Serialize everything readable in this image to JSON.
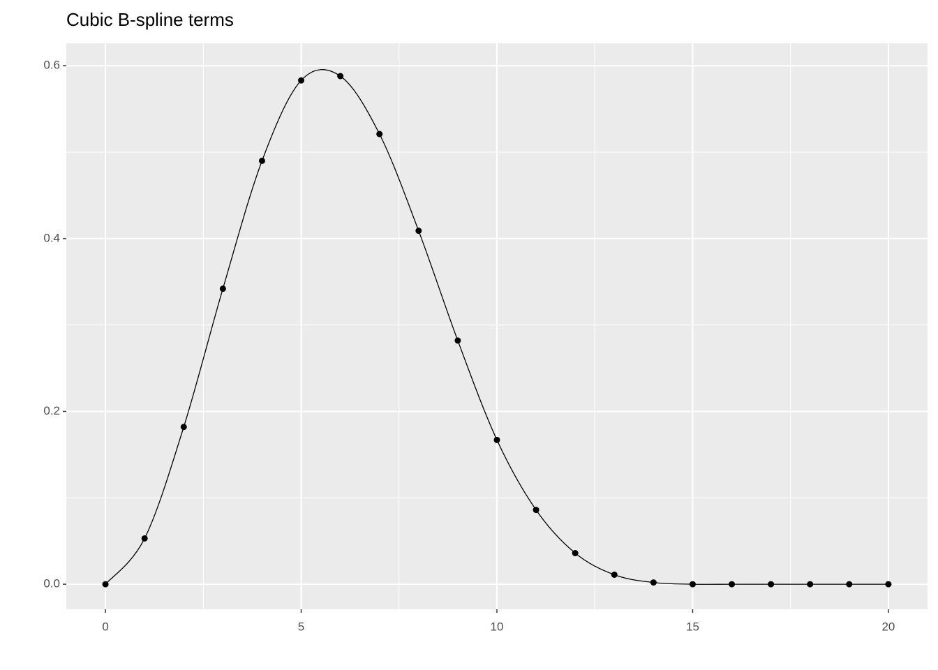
{
  "chart_data": {
    "type": "line",
    "title": "Cubic B-spline terms",
    "x": [
      0,
      1,
      2,
      3,
      4,
      5,
      6,
      7,
      8,
      9,
      10,
      11,
      12,
      13,
      14,
      15,
      16,
      17,
      18,
      19,
      20
    ],
    "series": [
      {
        "color": "#000000",
        "values": [
          0,
          0.053,
          0.182,
          0.342,
          0.49,
          0.583,
          0.588,
          0.521,
          0.409,
          0.282,
          0.167,
          0.086,
          0.036,
          0.011,
          0.002,
          0,
          0,
          0,
          0,
          0,
          0
        ]
      }
    ],
    "markers": true,
    "smooth": true,
    "xlim": [
      -1,
      21
    ],
    "ylim": [
      -0.029,
      0.626
    ],
    "xticks": [
      0,
      5,
      10,
      15,
      20
    ],
    "yticks": [
      {
        "value": 0,
        "label": "0.0"
      },
      0.2,
      0.4,
      0.6
    ],
    "xminor": [
      2.5,
      7.5,
      12.5,
      17.5
    ],
    "yminor": [
      0.1,
      0.3,
      0.5
    ],
    "grid": true,
    "panel_color": "#ebebeb"
  }
}
